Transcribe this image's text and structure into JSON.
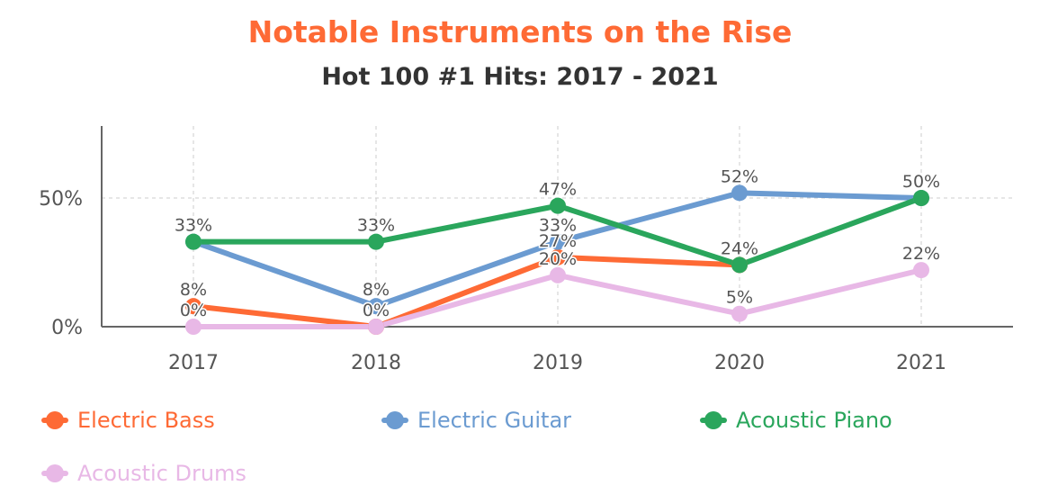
{
  "chart_data": {
    "type": "line",
    "title": "Notable Instruments on the Rise",
    "subtitle": "Hot 100 #1 Hits: 2017 - 2021",
    "x": [
      "2017",
      "2018",
      "2019",
      "2020",
      "2021"
    ],
    "y_ticks": [
      "0%",
      "50%"
    ],
    "ylim": [
      0,
      78
    ],
    "grid": true,
    "legend_position": "bottom",
    "series": [
      {
        "name": "Electric Bass",
        "color": "#fe6a35",
        "values": [
          8,
          0,
          27,
          24,
          null
        ],
        "labels": [
          "8%",
          "0%",
          "27%",
          "24%",
          null
        ]
      },
      {
        "name": "Electric Guitar",
        "color": "#6b9bd1",
        "values": [
          33,
          8,
          33,
          52,
          50
        ],
        "labels": [
          "33%",
          "8%",
          "33%",
          "52%",
          "50%"
        ]
      },
      {
        "name": "Acoustic Piano",
        "color": "#2aa65c",
        "values": [
          33,
          33,
          47,
          24,
          50
        ],
        "labels": [
          "33%",
          "33%",
          "47%",
          "24%",
          "50%"
        ]
      },
      {
        "name": "Acoustic Drums",
        "color": "#e8b8e6",
        "values": [
          0,
          0,
          20,
          5,
          22
        ],
        "labels": [
          "0%",
          "0%",
          "20%",
          "5%",
          "22%"
        ]
      }
    ]
  },
  "colors": {
    "title": "#fe6a35",
    "subtitle": "#333333",
    "axis": "#666666",
    "grid": "#cccccc",
    "text": "#555555"
  }
}
